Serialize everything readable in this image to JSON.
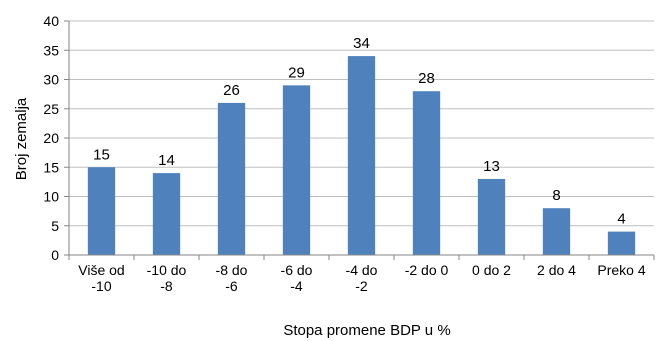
{
  "chart_data": {
    "type": "bar",
    "categories": [
      [
        "Više od",
        "-10"
      ],
      [
        "-10 do",
        "-8"
      ],
      [
        "-8 do",
        "-6"
      ],
      [
        "-6 do",
        "-4"
      ],
      [
        "-4 do",
        "-2"
      ],
      [
        "-2 do 0"
      ],
      [
        "0 do 2"
      ],
      [
        "2 do 4"
      ],
      [
        "Preko 4"
      ]
    ],
    "values": [
      15,
      14,
      26,
      29,
      34,
      28,
      13,
      8,
      4
    ],
    "xlabel": "Stopa promene BDP u %",
    "ylabel": "Broj zemalja",
    "ylim": [
      0,
      40
    ],
    "yticks": [
      0,
      5,
      10,
      15,
      20,
      25,
      30,
      35,
      40
    ],
    "grid": true,
    "legend": "none",
    "bar_color": "#4F81BD",
    "grid_color": "#BFBFBF",
    "axis_color": "#868686"
  }
}
